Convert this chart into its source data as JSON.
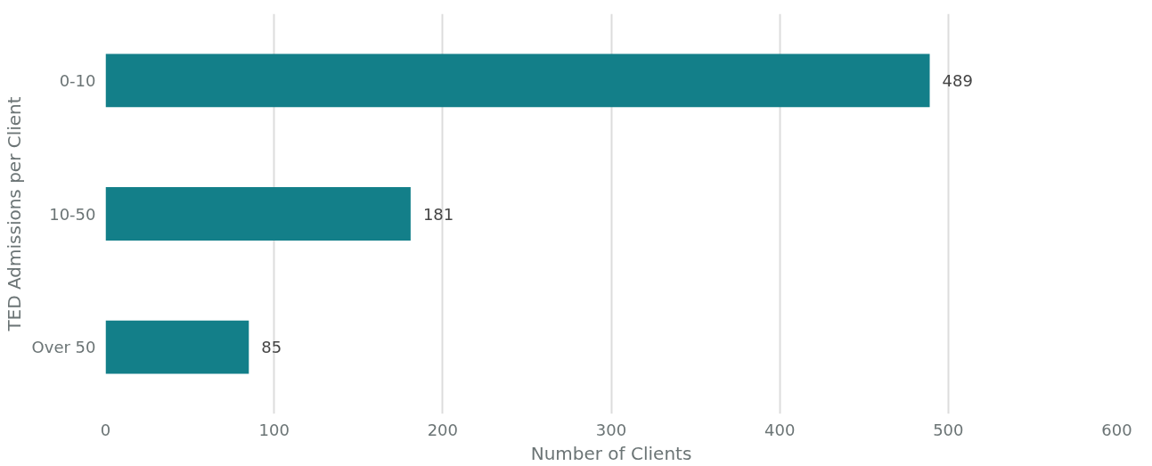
{
  "chart_data": {
    "type": "bar",
    "orientation": "horizontal",
    "xlabel": "Number of Clients",
    "ylabel": "TED Admissions per Client",
    "categories": [
      "0-10",
      "10-50",
      "Over 50"
    ],
    "values": [
      489,
      181,
      85
    ],
    "color": "#137f89",
    "xlim": [
      0,
      600
    ],
    "xticks": [
      0,
      100,
      200,
      300,
      400,
      500,
      600
    ],
    "grid": "x",
    "data_labels": true
  }
}
